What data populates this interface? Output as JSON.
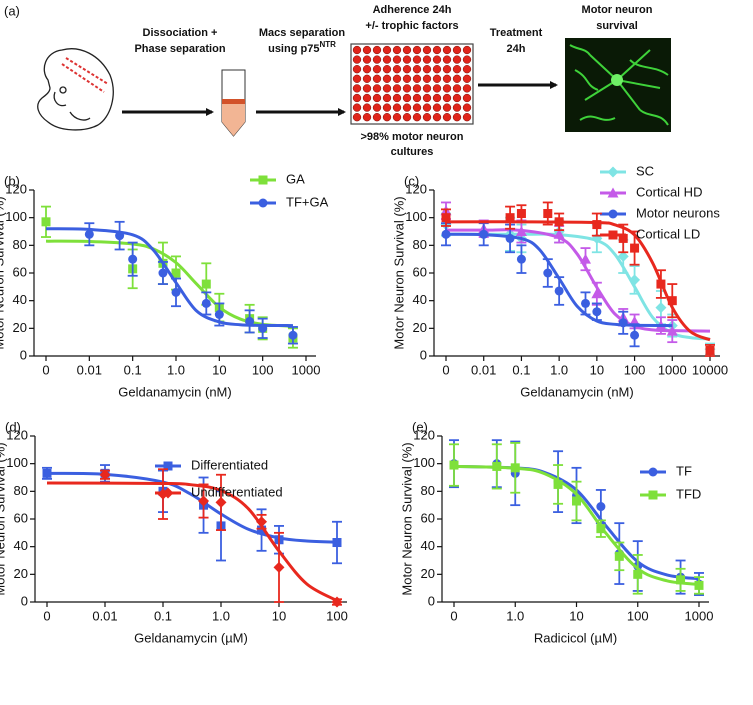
{
  "panel_a": {
    "label": "(a)",
    "dissociation": [
      "Dissociation +",
      "Phase separation"
    ],
    "macs": {
      "text": [
        "Macs separation",
        "using p75"
      ],
      "superscript": "NTR"
    },
    "adherence": [
      "Adherence 24h",
      "+/- trophic factors"
    ],
    "plate_note": [
      ">98% motor neuron",
      "cultures"
    ],
    "treatment": [
      "Treatment",
      "24h"
    ],
    "survival": [
      "Motor neuron",
      "survival"
    ]
  },
  "chart_data": [
    {
      "type": "scatter",
      "panel_label": "(b)",
      "xlabel": "Geldanamycin (nM)",
      "ylabel": "Motor Neuron Survival (%)",
      "xscale": "log",
      "xlim": [
        0,
        1000
      ],
      "ylim": [
        0,
        120
      ],
      "xticks": [
        0,
        0.01,
        0.1,
        {
          "value": 1,
          "label": "1.0"
        },
        10,
        100,
        1000
      ],
      "yticks": [
        0,
        20,
        40,
        60,
        80,
        100,
        120
      ],
      "series": [
        {
          "name": "GA",
          "color": "#7ee03a",
          "marker": "square",
          "x": [
            0,
            0.1,
            0.5,
            1,
            5,
            10,
            50,
            100,
            500
          ],
          "values": [
            97,
            63,
            67,
            60,
            52,
            35,
            27,
            20,
            13
          ],
          "errors": [
            11,
            14,
            15,
            12,
            15,
            10,
            10,
            8,
            7
          ],
          "fit_x": [
            0,
            0.01,
            0.1,
            0.3,
            1,
            3,
            10,
            30,
            100,
            500
          ],
          "fit_y": [
            83,
            82.8,
            81,
            77.4,
            67.5,
            52,
            35.3,
            26.8,
            22.9,
            21.5
          ]
        },
        {
          "name": "TF+GA",
          "color": "#3b5fe0",
          "marker": "circle",
          "x": [
            0.01,
            0.05,
            0.1,
            0.5,
            1,
            5,
            10,
            50,
            100,
            500
          ],
          "values": [
            88,
            87,
            70,
            60,
            46,
            38,
            30,
            25,
            20,
            15
          ],
          "errors": [
            8,
            10,
            12,
            8,
            10,
            8,
            8,
            8,
            7,
            6
          ],
          "fit_x": [
            0,
            0.01,
            0.1,
            0.3,
            1,
            3,
            10,
            30,
            100,
            500
          ],
          "fit_y": [
            92,
            91.5,
            87.6,
            76.6,
            53,
            32.5,
            24.6,
            22.6,
            22.1,
            22
          ]
        }
      ]
    },
    {
      "type": "scatter",
      "panel_label": "(c)",
      "xlabel": "Geldanamycin (nM)",
      "ylabel": "Motor Neuron Survival (%)",
      "xscale": "log",
      "xlim": [
        0,
        10000
      ],
      "ylim": [
        0,
        120
      ],
      "xticks": [
        0,
        0.01,
        0.1,
        {
          "value": 1,
          "label": "1.0"
        },
        10,
        100,
        1000,
        10000
      ],
      "yticks": [
        0,
        20,
        40,
        60,
        80,
        100,
        120
      ],
      "series": [
        {
          "name": "SC",
          "color": "#7fe4e4",
          "marker": "diamond",
          "x": [
            0,
            0.05,
            0.1,
            1,
            10,
            50,
            100,
            500,
            1000,
            10000
          ],
          "values": [
            95,
            88,
            85,
            90,
            85,
            72,
            55,
            35,
            22,
            5
          ],
          "errors": [
            8,
            12,
            10,
            8,
            10,
            12,
            10,
            12,
            8,
            4
          ],
          "fit_x": [
            0,
            0.01,
            0.1,
            1,
            10,
            30,
            100,
            300,
            1000,
            3000,
            10000
          ],
          "fit_y": [
            88,
            88,
            88,
            87.7,
            83.5,
            73.5,
            50,
            28,
            16.5,
            13.3,
            12.3
          ]
        },
        {
          "name": "Cortical HD",
          "color": "#c45ae8",
          "marker": "triangle",
          "x": [
            0,
            0.01,
            0.1,
            1,
            5,
            10,
            50,
            100,
            500,
            1000
          ],
          "values": [
            105,
            92,
            90,
            88,
            70,
            45,
            28,
            25,
            22,
            18
          ],
          "errors": [
            6,
            6,
            8,
            6,
            8,
            8,
            6,
            5,
            6,
            8
          ],
          "fit_x": [
            0,
            0.01,
            0.1,
            1,
            3,
            10,
            30,
            100,
            300,
            1000,
            10000
          ],
          "fit_y": [
            91,
            91,
            90.8,
            85.5,
            73.8,
            49.6,
            30.4,
            21.4,
            18.9,
            18.3,
            18
          ]
        },
        {
          "name": "Motor neurons",
          "color": "#3b5fe0",
          "marker": "circle",
          "x": [
            0,
            0.01,
            0.05,
            0.1,
            0.5,
            1,
            5,
            10,
            50,
            100
          ],
          "values": [
            88,
            88,
            85,
            70,
            60,
            47,
            38,
            32,
            24,
            15
          ],
          "errors": [
            8,
            8,
            10,
            10,
            10,
            10,
            8,
            6,
            8,
            8
          ],
          "fit_x": [
            0,
            0.01,
            0.1,
            0.3,
            1,
            3,
            10,
            30,
            100,
            1000
          ],
          "fit_y": [
            88,
            87.7,
            84.9,
            77,
            56,
            36,
            25.3,
            22.9,
            22.2,
            22
          ]
        },
        {
          "name": "Cortical LD",
          "color": "#e8281e",
          "marker": "square",
          "x": [
            0,
            0.05,
            0.1,
            0.5,
            1,
            10,
            50,
            100,
            500,
            1000,
            10000
          ],
          "values": [
            100,
            100,
            103,
            103,
            97,
            95,
            85,
            78,
            52,
            40,
            4
          ],
          "errors": [
            6,
            8,
            6,
            8,
            6,
            8,
            10,
            12,
            10,
            12,
            4
          ],
          "fit_x": [
            0,
            0.1,
            10,
            30,
            100,
            300,
            1000,
            3000,
            10000
          ],
          "fit_y": [
            97,
            97,
            96.5,
            94.8,
            87.5,
            67.4,
            35.1,
            17.7,
            11.7
          ]
        }
      ]
    },
    {
      "type": "scatter",
      "panel_label": "(d)",
      "xlabel": "Geldanamycin (µM)",
      "ylabel": "Motor Neuron Survival (%)",
      "xscale": "log",
      "xlim": [
        0,
        100
      ],
      "ylim": [
        0,
        120
      ],
      "xticks": [
        0,
        0.01,
        0.1,
        {
          "value": 1,
          "label": "1.0"
        },
        10,
        100
      ],
      "yticks": [
        0,
        20,
        40,
        60,
        80,
        100,
        120
      ],
      "series": [
        {
          "name": "Differentiated",
          "color": "#3b5fe0",
          "marker": "square",
          "x": [
            0,
            0.01,
            0.1,
            0.5,
            1,
            5,
            10,
            100
          ],
          "values": [
            93,
            93,
            80,
            70,
            55,
            52,
            45,
            43
          ],
          "errors": [
            4,
            6,
            15,
            20,
            25,
            15,
            10,
            15
          ],
          "fit_x": [
            0,
            0.01,
            0.1,
            0.3,
            1,
            3,
            10,
            30,
            100
          ],
          "fit_y": [
            93,
            92.3,
            86.7,
            78,
            63.6,
            52.5,
            46.3,
            44.1,
            43.3
          ]
        },
        {
          "name": "Undifferentiated",
          "color": "#e8281e",
          "marker": "diamond",
          "x": [
            0.01,
            0.1,
            0.5,
            1,
            5,
            10,
            100
          ],
          "values": [
            92,
            78,
            73,
            72,
            58,
            25,
            0
          ],
          "errors": [
            3,
            18,
            12,
            20,
            5,
            25,
            2
          ],
          "fit_x": [
            0,
            0.1,
            0.3,
            1,
            3,
            10,
            30,
            100
          ],
          "fit_y": [
            86,
            85.7,
            84.8,
            80.6,
            67.2,
            36.8,
            13.1,
            1
          ]
        }
      ]
    },
    {
      "type": "scatter",
      "panel_label": "(e)",
      "xlabel": "Radicicol  (µM)",
      "ylabel": "Motor Neuron Survival (%)",
      "xscale": "log",
      "xlim": [
        0,
        1000
      ],
      "ylim": [
        0,
        120
      ],
      "xticks": [
        0,
        {
          "value": 1,
          "label": "1.0"
        },
        10,
        100,
        1000
      ],
      "yticks": [
        0,
        20,
        40,
        60,
        80,
        100,
        120
      ],
      "series": [
        {
          "name": "TF",
          "color": "#3b5fe0",
          "marker": "circle",
          "x": [
            0,
            0.5,
            1,
            5,
            10,
            25,
            50,
            100,
            500,
            1000
          ],
          "values": [
            100,
            100,
            93,
            87,
            77,
            69,
            35,
            26,
            18,
            13
          ],
          "errors": [
            17,
            17,
            23,
            22,
            20,
            12,
            22,
            18,
            12,
            8
          ],
          "fit_x": [
            0,
            1,
            3,
            10,
            30,
            100,
            300,
            1000
          ],
          "fit_y": [
            98,
            96.9,
            93.7,
            81,
            55.2,
            29.1,
            19.6,
            16.8
          ]
        },
        {
          "name": "TFD",
          "color": "#7ee03a",
          "marker": "square",
          "x": [
            0,
            0.5,
            1,
            5,
            10,
            25,
            50,
            100,
            500,
            1000
          ],
          "values": [
            99,
            98,
            97,
            85,
            73,
            53,
            33,
            20,
            16,
            12
          ],
          "errors": [
            15,
            16,
            18,
            14,
            14,
            6,
            10,
            14,
            8,
            6
          ],
          "fit_x": [
            0,
            1,
            3,
            10,
            30,
            100,
            300,
            1000
          ],
          "fit_y": [
            98,
            96.7,
            92.8,
            77.9,
            49.9,
            24.2,
            15.3,
            12.7
          ]
        }
      ]
    }
  ]
}
